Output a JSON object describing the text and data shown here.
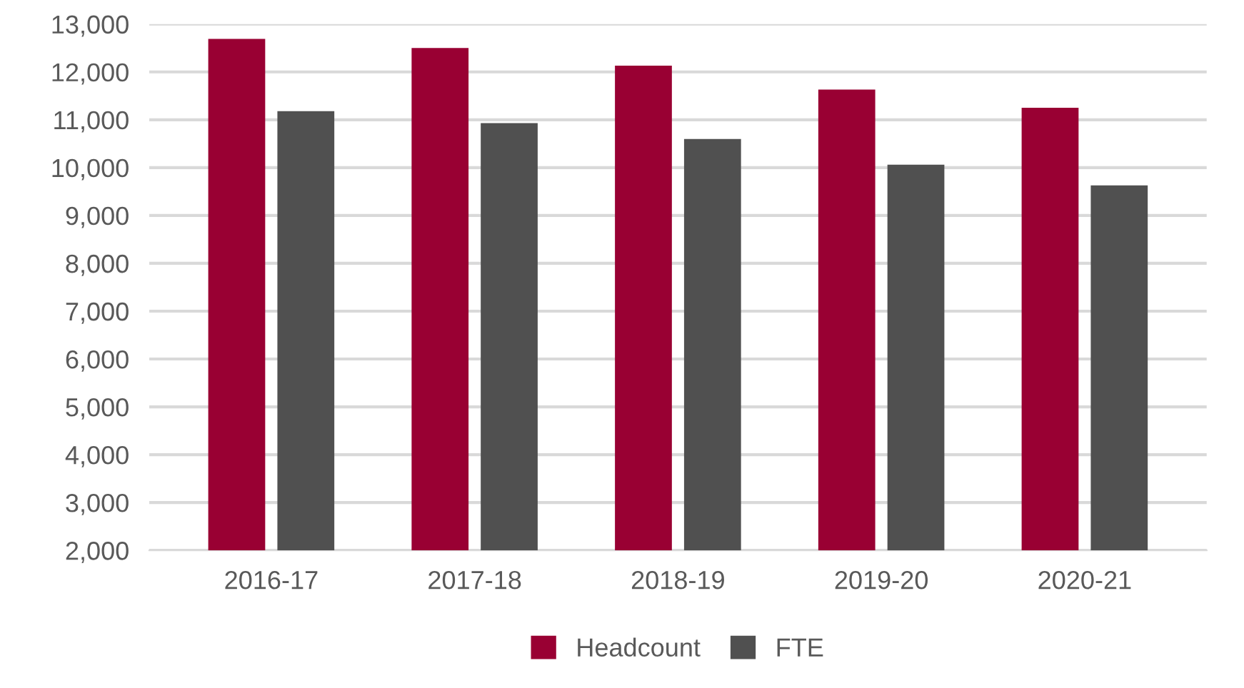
{
  "chart_data": {
    "type": "bar",
    "categories": [
      "2016-17",
      "2017-18",
      "2018-19",
      "2019-20",
      "2020-21"
    ],
    "series": [
      {
        "name": "Headcount",
        "color": "#990033",
        "values": [
          12690,
          12500,
          12130,
          11630,
          11250
        ]
      },
      {
        "name": "FTE",
        "color": "#505050",
        "values": [
          11180,
          10930,
          10600,
          10060,
          9630
        ]
      }
    ],
    "ylim": [
      2000,
      13000
    ],
    "yticks": [
      {
        "value": 2000,
        "label": "2,000"
      },
      {
        "value": 3000,
        "label": "3,000"
      },
      {
        "value": 4000,
        "label": "4,000"
      },
      {
        "value": 5000,
        "label": "5,000"
      },
      {
        "value": 6000,
        "label": "6,000"
      },
      {
        "value": 7000,
        "label": "7,000"
      },
      {
        "value": 8000,
        "label": "8,000"
      },
      {
        "value": 9000,
        "label": "9,000"
      },
      {
        "value": 10000,
        "label": "10,000"
      },
      {
        "value": 11000,
        "label": "11,000"
      },
      {
        "value": 12000,
        "label": "12,000"
      },
      {
        "value": 13000,
        "label": "13,000"
      }
    ],
    "grid": "y",
    "legend": "bottom"
  }
}
